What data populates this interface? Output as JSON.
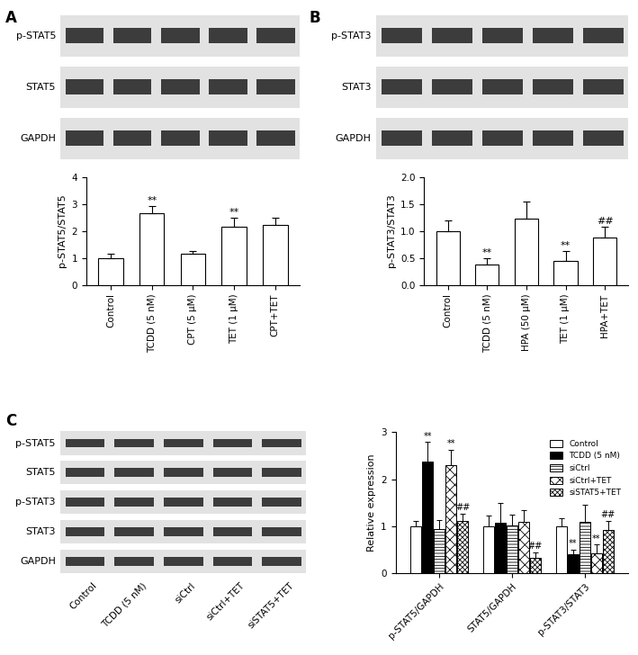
{
  "chart_data": [
    {
      "type": "bar",
      "y_label": "p-STAT5/STAT5",
      "categories": [
        "Control",
        "TCDD (5 nM)",
        "CPT (5 μM)",
        "TET (1 μM)",
        "CPT+TET"
      ],
      "values": [
        1.0,
        2.65,
        1.15,
        2.15,
        2.22
      ],
      "errors": [
        0.15,
        0.27,
        0.12,
        0.33,
        0.27
      ],
      "color": "#ffffff",
      "ylim": [
        0,
        4
      ],
      "yticks": [
        0,
        1,
        2,
        3,
        4
      ],
      "annotations": [
        {
          "category": "TCDD (5 nM)",
          "text": "**"
        },
        {
          "category": "TET (1 μM)",
          "text": "**"
        }
      ]
    },
    {
      "type": "bar",
      "y_label": "p-STAT3/STAT3",
      "categories": [
        "Control",
        "TCDD (5 nM)",
        "HPA (50 μM)",
        "TET (1 μM)",
        "HPA+TET"
      ],
      "values": [
        1.0,
        0.38,
        1.23,
        0.45,
        0.87
      ],
      "errors": [
        0.2,
        0.11,
        0.32,
        0.17,
        0.2
      ],
      "color": "#ffffff",
      "ylim": [
        0,
        2
      ],
      "yticks": [
        {
          "value": 0,
          "label": "0.0"
        },
        {
          "value": 0.5,
          "label": "0.5"
        },
        {
          "value": 1,
          "label": "1.0"
        },
        {
          "value": 1.5,
          "label": "1.5"
        },
        {
          "value": 2,
          "label": "2.0"
        }
      ],
      "annotations": [
        {
          "category": "TCDD (5 nM)",
          "text": "**"
        },
        {
          "category": "TET (1 μM)",
          "text": "**"
        },
        {
          "category": "HPA+TET",
          "text": "##"
        }
      ]
    },
    {
      "type": "bar",
      "y_label": "Relative expression",
      "categories": [
        "p-STAT5/GAPDH",
        "STAT5/GAPDH",
        "p-STAT3/STAT3"
      ],
      "series": [
        {
          "name": "Control",
          "color": "#ffffff",
          "values": [
            1.0,
            1.0,
            1.0
          ],
          "errors": [
            0.12,
            0.22,
            0.17
          ]
        },
        {
          "name": "TCDD (5 nM)",
          "color": "#000000",
          "values": [
            2.37,
            1.07,
            0.4
          ],
          "errors": [
            0.42,
            0.43,
            0.1
          ]
        },
        {
          "name": "siCtrl",
          "color": "#ffffff",
          "values": [
            0.93,
            1.02,
            1.1
          ],
          "errors": [
            0.2,
            0.22,
            0.35
          ]
        },
        {
          "name": "siCtrl+TET",
          "color": "#ffffff",
          "values": [
            2.3,
            1.1,
            0.43
          ],
          "errors": [
            0.33,
            0.25,
            0.18
          ]
        },
        {
          "name": "siSTAT5+TET",
          "color": "#ffffff",
          "values": [
            1.12,
            0.33,
            0.92
          ],
          "errors": [
            0.15,
            0.12,
            0.2
          ]
        }
      ],
      "ylim": [
        0,
        3
      ],
      "yticks": [
        0,
        1,
        2,
        3
      ],
      "legend": "upper right",
      "annotations": [
        {
          "category": "p-STAT5/GAPDH",
          "series": "TCDD (5 nM)",
          "text": "**"
        },
        {
          "category": "p-STAT5/GAPDH",
          "series": "siCtrl+TET",
          "text": "**"
        },
        {
          "category": "p-STAT5/GAPDH",
          "series": "siSTAT5+TET",
          "text": "##"
        },
        {
          "category": "STAT5/GAPDH",
          "series": "siSTAT5+TET",
          "text": "##"
        },
        {
          "category": "p-STAT3/STAT3",
          "series": "TCDD (5 nM)",
          "text": "**"
        },
        {
          "category": "p-STAT3/STAT3",
          "series": "siCtrl+TET",
          "text": "**"
        },
        {
          "category": "p-STAT3/STAT3",
          "series": "siSTAT5+TET",
          "text": "##"
        }
      ]
    }
  ],
  "blots": [
    {
      "panel": "A",
      "rows": [
        "p-STAT5",
        "STAT5",
        "GAPDH"
      ]
    },
    {
      "panel": "B",
      "rows": [
        "p-STAT3",
        "STAT3",
        "GAPDH"
      ]
    },
    {
      "panel": "C",
      "rows": [
        "p-STAT5",
        "STAT5",
        "p-STAT3",
        "STAT3",
        "GAPDH"
      ],
      "lanes": [
        "Control",
        "TCDD (5 nM)",
        "siCtrl",
        "siCtrl+TET",
        "siSTAT5+TET"
      ]
    }
  ]
}
